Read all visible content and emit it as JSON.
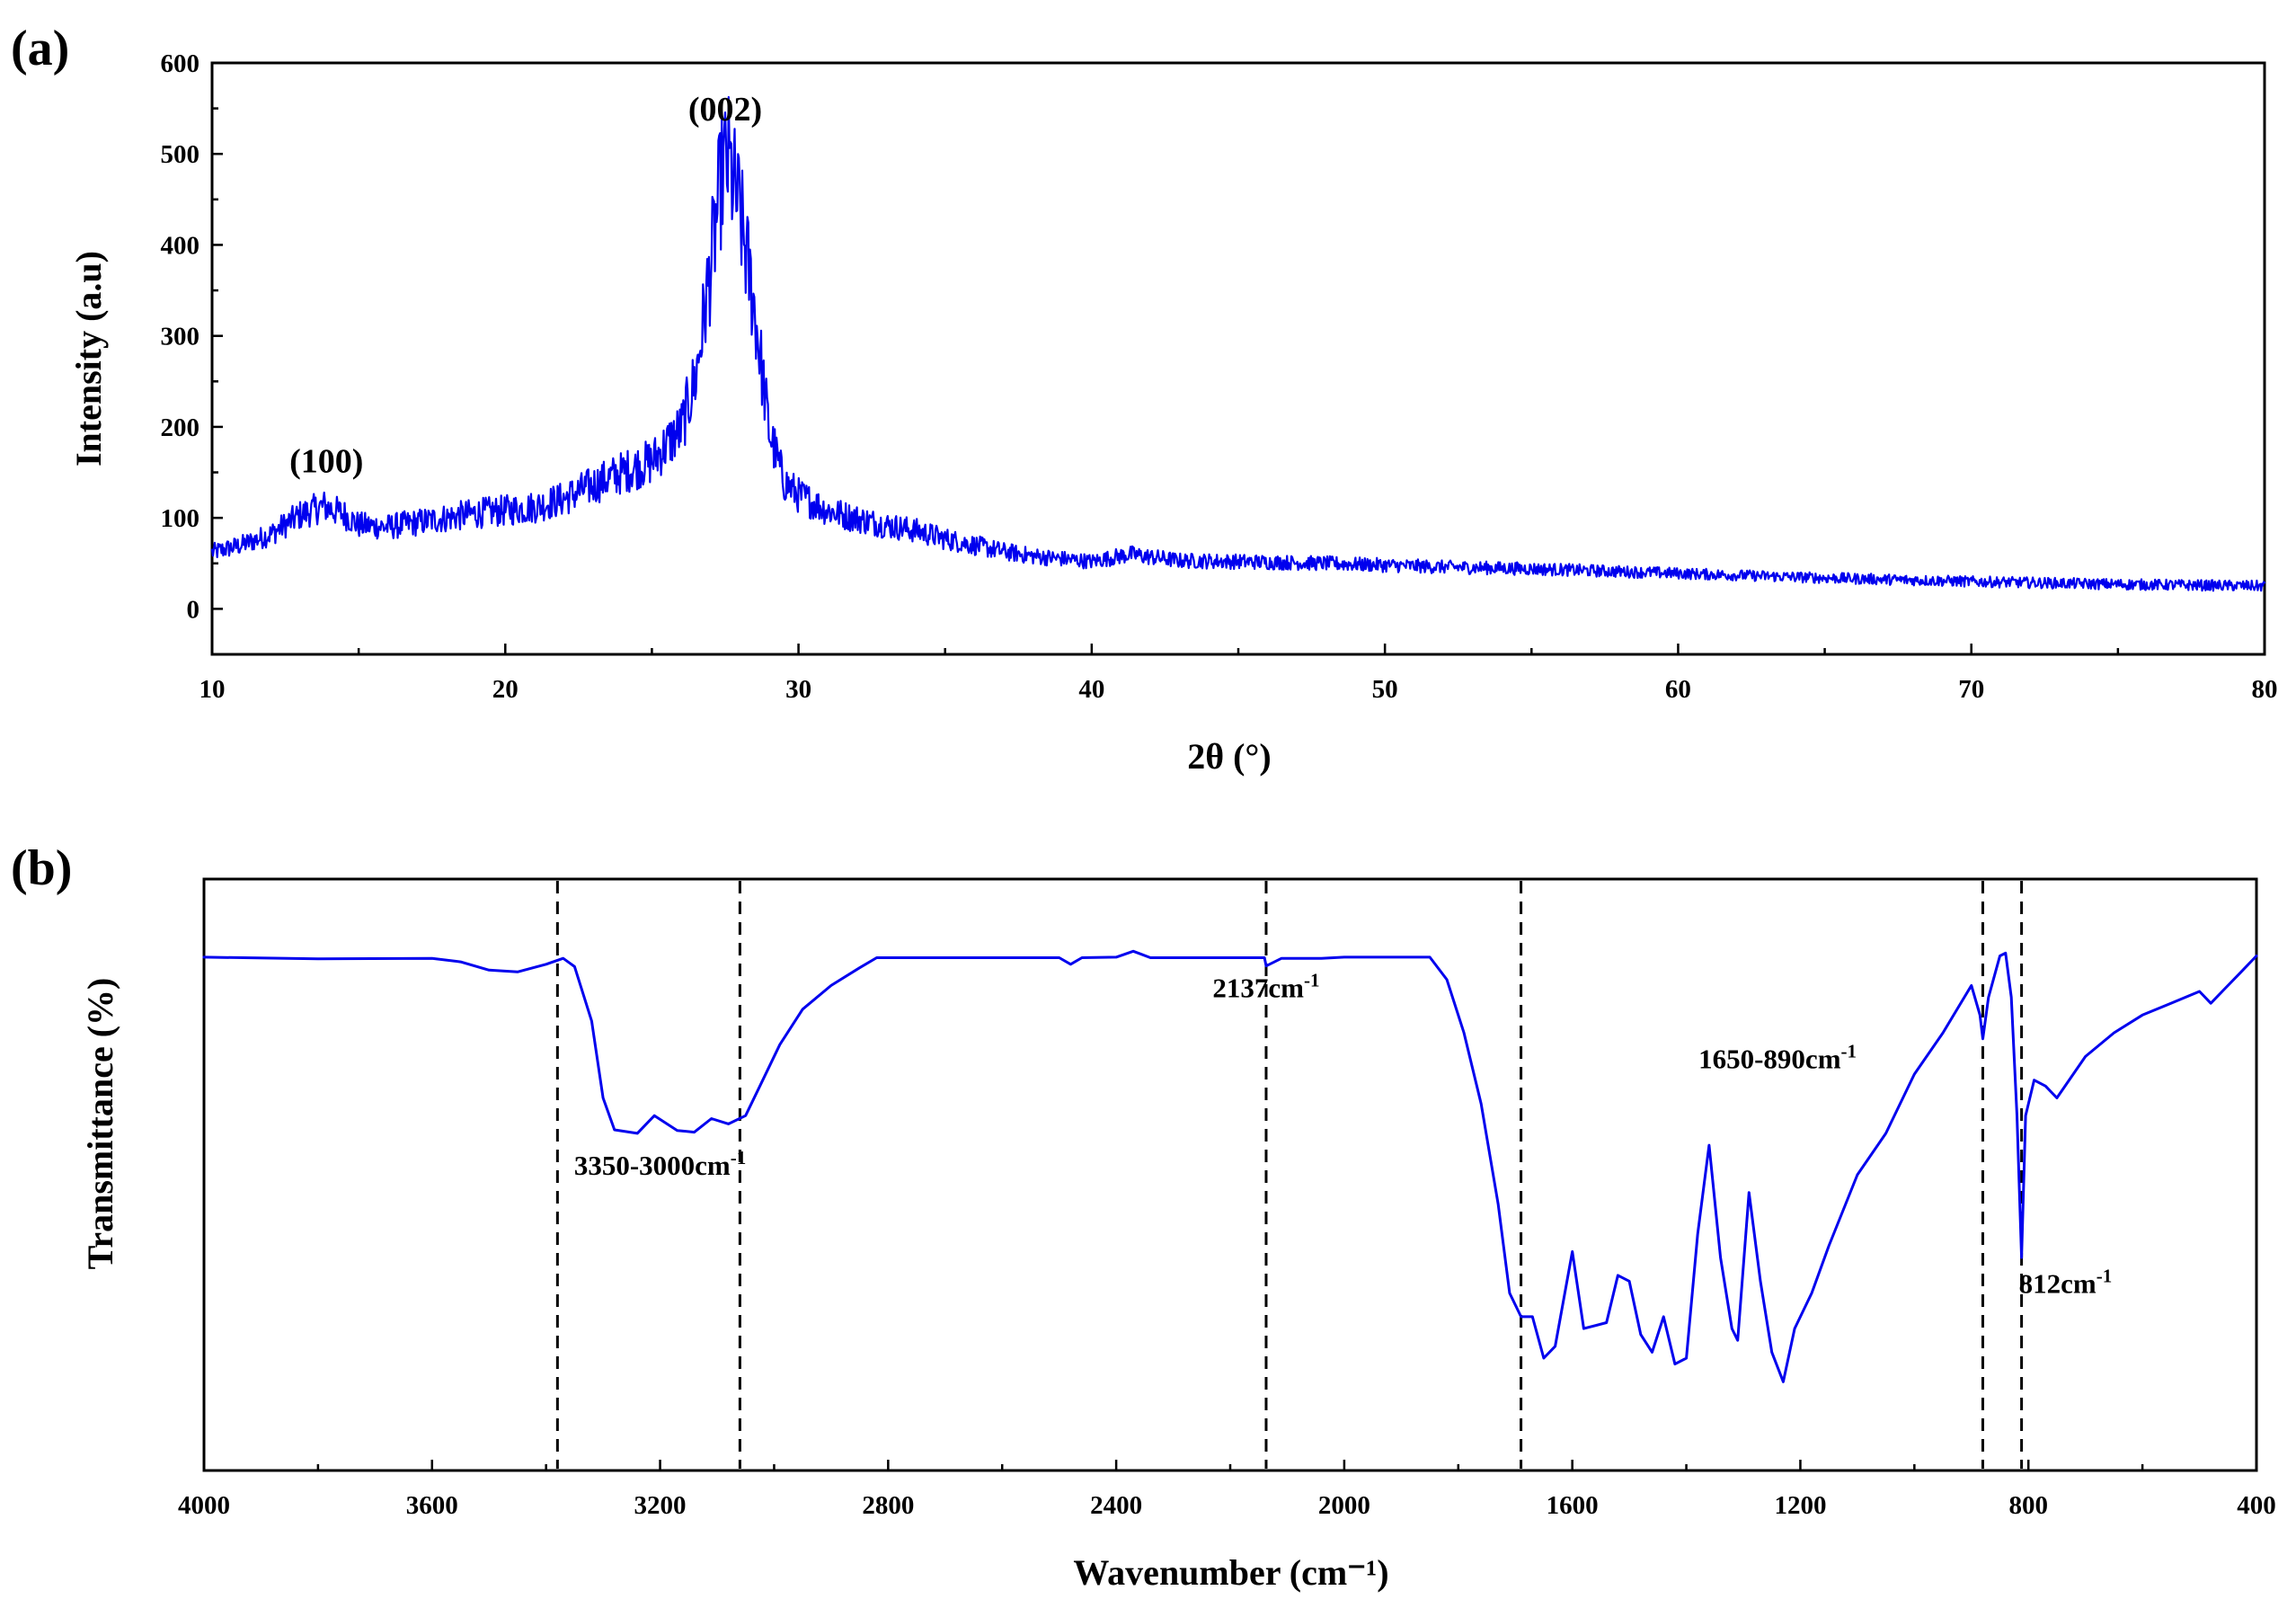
{
  "panels": {
    "a": {
      "label": "(a)"
    },
    "b": {
      "label": "(b)"
    }
  },
  "colors": {
    "series": "#0000ee",
    "axis": "#000000"
  },
  "chart_data": [
    {
      "id": "xrd",
      "type": "line",
      "xlabel": "2θ (°)",
      "ylabel": "Intensity (a.u)",
      "xlim": [
        10,
        80
      ],
      "ylim": [
        -50,
        600
      ],
      "xticks": [
        10,
        20,
        30,
        40,
        50,
        60,
        70,
        80
      ],
      "yticks": [
        0,
        100,
        200,
        300,
        400,
        500,
        600
      ],
      "grid": false,
      "noisy": true,
      "series": [
        {
          "name": "XRD pattern",
          "color": "#0000ee",
          "points": [
            [
              10,
              62
            ],
            [
              11,
              70
            ],
            [
              12,
              82
            ],
            [
              13,
              103
            ],
            [
              13.8,
              113
            ],
            [
              14.5,
              104
            ],
            [
              15,
              92
            ],
            [
              16,
              90
            ],
            [
              17,
              95
            ],
            [
              18,
              100
            ],
            [
              19,
              105
            ],
            [
              20,
              108
            ],
            [
              21,
              112
            ],
            [
              22,
              121
            ],
            [
              23,
              136
            ],
            [
              24,
              150
            ],
            [
              25,
              162
            ],
            [
              26,
              198
            ],
            [
              26.5,
              255
            ],
            [
              27,
              375
            ],
            [
              27.4,
              480
            ],
            [
              27.6,
              492
            ],
            [
              28,
              435
            ],
            [
              28.5,
              330
            ],
            [
              29,
              195
            ],
            [
              29.5,
              140
            ],
            [
              30,
              125
            ],
            [
              31,
              108
            ],
            [
              32,
              99
            ],
            [
              33,
              92
            ],
            [
              34,
              86
            ],
            [
              35,
              77
            ],
            [
              36,
              70
            ],
            [
              37,
              63
            ],
            [
              38,
              58
            ],
            [
              40,
              52
            ],
            [
              41.3,
              60
            ],
            [
              43,
              53
            ],
            [
              45,
              52
            ],
            [
              48,
              50
            ],
            [
              50,
              48
            ],
            [
              52,
              46
            ],
            [
              55,
              44
            ],
            [
              58,
              41
            ],
            [
              60,
              39
            ],
            [
              65,
              34
            ],
            [
              70,
              30
            ],
            [
              75,
              27
            ],
            [
              80,
              25
            ]
          ]
        }
      ],
      "annotations": [
        {
          "text": "(002)",
          "x": 27.5,
          "y": 537
        },
        {
          "text": "(100)",
          "x": 13.9,
          "y": 150
        }
      ]
    },
    {
      "id": "ftir",
      "type": "line",
      "xlabel": "Wavenumber (cm⁻¹)",
      "ylabel": "Transmittance (%)",
      "xlim": [
        4000,
        400
      ],
      "ylim": [
        0,
        100
      ],
      "xticks": [
        4000,
        3600,
        3200,
        2800,
        2400,
        2000,
        1600,
        1200,
        800,
        400
      ],
      "grid": false,
      "noisy": false,
      "series": [
        {
          "name": "FTIR spectrum",
          "color": "#0000ee",
          "points": [
            [
              4000,
              86.8
            ],
            [
              3800,
              86.5
            ],
            [
              3600,
              86.6
            ],
            [
              3550,
              86
            ],
            [
              3500,
              84.6
            ],
            [
              3450,
              84.3
            ],
            [
              3400,
              85.6
            ],
            [
              3370,
              86.6
            ],
            [
              3350,
              85.2
            ],
            [
              3320,
              76
            ],
            [
              3300,
              63
            ],
            [
              3280,
              57.6
            ],
            [
              3240,
              57
            ],
            [
              3210,
              60
            ],
            [
              3170,
              57.5
            ],
            [
              3140,
              57.2
            ],
            [
              3110,
              59.5
            ],
            [
              3080,
              58.6
            ],
            [
              3050,
              60
            ],
            [
              3020,
              66
            ],
            [
              2990,
              72
            ],
            [
              2950,
              78
            ],
            [
              2900,
              82
            ],
            [
              2850,
              85
            ],
            [
              2820,
              86.7
            ],
            [
              2500,
              86.7
            ],
            [
              2480,
              85.6
            ],
            [
              2460,
              86.7
            ],
            [
              2400,
              86.8
            ],
            [
              2370,
              87.8
            ],
            [
              2340,
              86.7
            ],
            [
              2140,
              86.7
            ],
            [
              2137,
              85.3
            ],
            [
              2110,
              86.6
            ],
            [
              2040,
              86.6
            ],
            [
              2000,
              86.8
            ],
            [
              1850,
              86.8
            ],
            [
              1820,
              83
            ],
            [
              1790,
              74
            ],
            [
              1760,
              62
            ],
            [
              1730,
              45
            ],
            [
              1710,
              30
            ],
            [
              1690,
              26
            ],
            [
              1670,
              26
            ],
            [
              1650,
              19
            ],
            [
              1630,
              21
            ],
            [
              1600,
              37
            ],
            [
              1580,
              24
            ],
            [
              1540,
              25
            ],
            [
              1520,
              33
            ],
            [
              1500,
              32
            ],
            [
              1480,
              23
            ],
            [
              1460,
              20
            ],
            [
              1440,
              26
            ],
            [
              1420,
              18
            ],
            [
              1400,
              19
            ],
            [
              1380,
              40
            ],
            [
              1360,
              55
            ],
            [
              1340,
              36
            ],
            [
              1320,
              24
            ],
            [
              1310,
              22
            ],
            [
              1290,
              47
            ],
            [
              1270,
              32
            ],
            [
              1250,
              20
            ],
            [
              1230,
              15
            ],
            [
              1210,
              24
            ],
            [
              1180,
              30
            ],
            [
              1150,
              38
            ],
            [
              1100,
              50
            ],
            [
              1050,
              57
            ],
            [
              1000,
              67
            ],
            [
              950,
              74
            ],
            [
              900,
              82
            ],
            [
              885,
              77
            ],
            [
              880,
              73
            ],
            [
              870,
              80
            ],
            [
              850,
              87
            ],
            [
              840,
              87.5
            ],
            [
              830,
              80
            ],
            [
              820,
              60
            ],
            [
              812,
              36
            ],
            [
              805,
              60
            ],
            [
              790,
              66
            ],
            [
              770,
              65
            ],
            [
              750,
              63
            ],
            [
              700,
              70
            ],
            [
              650,
              74
            ],
            [
              600,
              77
            ],
            [
              550,
              79
            ],
            [
              500,
              81
            ],
            [
              480,
              79
            ],
            [
              460,
              81
            ],
            [
              430,
              84
            ],
            [
              400,
              87
            ]
          ]
        }
      ],
      "markers": [
        3380,
        3060,
        2137,
        1690,
        880,
        812
      ],
      "annotations": [
        {
          "text": "2137cm",
          "sup": "-1",
          "x": 2137,
          "y": 80
        },
        {
          "text": "3350-3000cm",
          "sup": "-1",
          "x": 3200,
          "y": 50
        },
        {
          "text": "1650-890cm",
          "sup": "-1",
          "x": 1240,
          "y": 68
        },
        {
          "text": "812cm",
          "sup": "-1",
          "x": 735,
          "y": 30
        }
      ]
    }
  ]
}
